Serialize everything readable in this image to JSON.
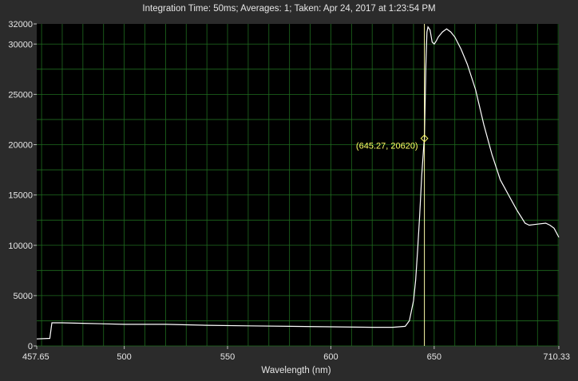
{
  "header": {
    "info": "Integration Time: 50ms;  Averages: 1;  Taken: Apr 24, 2017 at 1:23:54 PM"
  },
  "colors": {
    "background": "#2b2b2b",
    "plot_bg": "#000000",
    "grid": "#1f6b1f",
    "trace": "#ffffff",
    "cursor_line": "#ffffaa",
    "cursor_label": "#ffff66"
  },
  "chart_data": {
    "type": "line",
    "title": "",
    "xlabel": "Wavelength (nm)",
    "ylabel": "",
    "xlim": [
      457.65,
      710.33
    ],
    "ylim": [
      0,
      32000
    ],
    "grid": true,
    "legend": "none",
    "x_ticks": [
      "457.65",
      "500",
      "550",
      "600",
      "650",
      "710.33"
    ],
    "x_tick_values": [
      457.65,
      500,
      550,
      600,
      650,
      710.33
    ],
    "y_ticks": [
      "0",
      "5000",
      "10000",
      "15000",
      "20000",
      "25000",
      "30000",
      "32000"
    ],
    "y_tick_values": [
      0,
      5000,
      10000,
      15000,
      20000,
      25000,
      30000,
      32000
    ],
    "cursor": {
      "x": 645.27,
      "y": 20620,
      "label": "(645.27, 20620)"
    },
    "series": [
      {
        "x": [
          457.65,
          464,
          465,
          470,
          480,
          500,
          520,
          540,
          560,
          580,
          600,
          620,
          630,
          636,
          638,
          640,
          641,
          642,
          643,
          644,
          645,
          645.27,
          646,
          646.5,
          647,
          648,
          649,
          650,
          651,
          652,
          654,
          656,
          658,
          660,
          663,
          666,
          670,
          674,
          678,
          682,
          686,
          690,
          694,
          696,
          700,
          704,
          706,
          708,
          710.33
        ],
        "y": [
          700,
          750,
          2300,
          2300,
          2250,
          2150,
          2150,
          2050,
          2000,
          1950,
          1900,
          1850,
          1850,
          1950,
          2500,
          4500,
          6500,
          9500,
          13000,
          17000,
          20000,
          20620,
          28000,
          31200,
          31700,
          31400,
          30200,
          30000,
          30300,
          30700,
          31200,
          31500,
          31200,
          30700,
          29500,
          28000,
          25500,
          22000,
          19000,
          16500,
          15000,
          13500,
          12200,
          12000,
          12100,
          12200,
          12000,
          11700,
          10800
        ]
      }
    ]
  }
}
